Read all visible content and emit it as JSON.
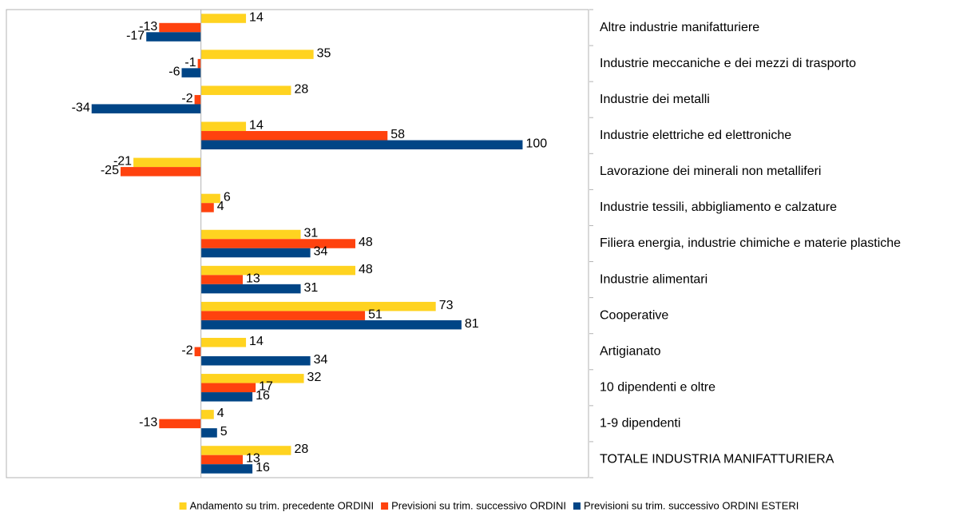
{
  "chart_data": {
    "type": "bar",
    "orientation": "horizontal",
    "categories": [
      "Altre industrie manifatturiere",
      "Industrie meccaniche e dei mezzi di trasporto",
      "Industrie dei metalli",
      "Industrie elettriche ed elettroniche",
      "Lavorazione dei minerali non metalliferi",
      "Industrie tessili, abbigliamento e calzature",
      "Filiera energia, industrie chimiche e materie plastiche",
      "Industrie alimentari",
      " Cooperative",
      " Artigianato",
      "10 dipendenti e oltre",
      "1-9 dipendenti",
      "TOTALE INDUSTRIA MANIFATTURIERA"
    ],
    "series": [
      {
        "name": "Andamento su trim. precedente ORDINI",
        "color": "#ffd320",
        "values": [
          14,
          35,
          28,
          14,
          -21,
          6,
          31,
          48,
          73,
          14,
          32,
          4,
          28
        ]
      },
      {
        "name": "Previsioni su trim. successivo ORDINI",
        "color": "#ff420e",
        "values": [
          -13,
          -1,
          -2,
          58,
          -25,
          4,
          48,
          13,
          51,
          -2,
          17,
          -13,
          13
        ]
      },
      {
        "name": "Previsioni su trim. successivo ORDINI ESTERI",
        "color": "#004586",
        "values": [
          -17,
          -6,
          -34,
          100,
          null,
          null,
          34,
          31,
          81,
          34,
          16,
          5,
          16
        ]
      }
    ],
    "xlim": [
      -60,
      120
    ],
    "legend": "bottom"
  }
}
